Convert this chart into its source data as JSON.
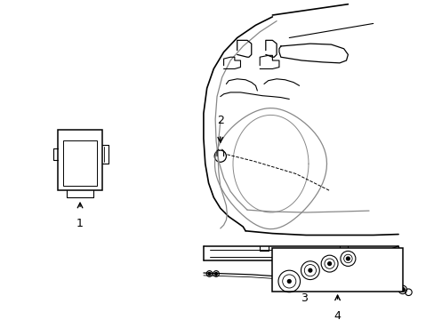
{
  "background_color": "#ffffff",
  "line_color": "#000000",
  "gray_color": "#888888",
  "lw": 1.0,
  "fig_width": 4.89,
  "fig_height": 3.6,
  "dpi": 100
}
